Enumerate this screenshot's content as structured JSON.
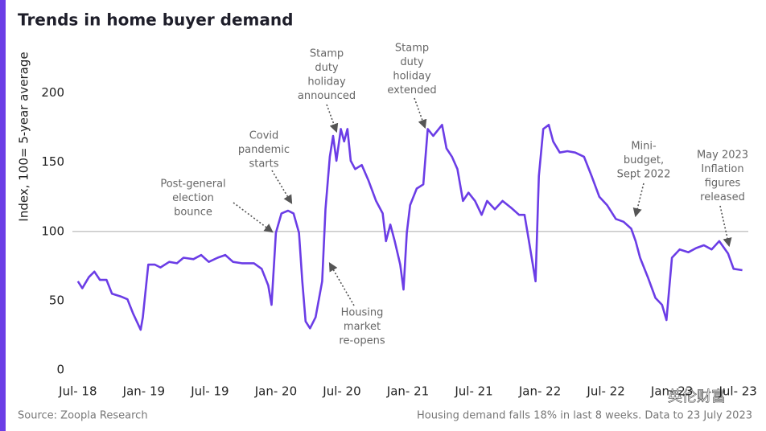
{
  "chart_data": {
    "type": "line",
    "title": "Trends in home buyer demand",
    "y_label": "Index, 100= 5-year average",
    "source": "Source: Zoopla Research",
    "note": "Housing demand falls 18% in last 8 weeks. Data to 23 July 2023",
    "watermark": "英伦财富",
    "x": [
      0,
      0.4,
      1.0,
      1.5,
      2.0,
      2.6,
      3.1,
      3.9,
      4.5,
      5.0,
      5.7,
      5.9,
      6.4,
      7.0,
      7.5,
      8.3,
      9.0,
      9.6,
      10.5,
      11.2,
      11.9,
      12.7,
      13.4,
      14.1,
      14.9,
      16.0,
      16.7,
      17.3,
      17.6,
      18.0,
      18.5,
      19.1,
      19.6,
      20.1,
      20.4,
      20.7,
      21.1,
      21.6,
      22.2,
      22.5,
      22.9,
      23.2,
      23.5,
      23.9,
      24.2,
      24.5,
      24.8,
      25.2,
      25.8,
      26.4,
      27.1,
      27.7,
      28.0,
      28.4,
      28.8,
      29.3,
      29.6,
      29.9,
      30.2,
      30.8,
      31.4,
      31.8,
      32.3,
      32.8,
      33.1,
      33.5,
      34.0,
      34.5,
      35.0,
      35.5,
      36.1,
      36.7,
      37.2,
      37.9,
      38.6,
      39.4,
      40.1,
      40.6,
      41.0,
      41.6,
      41.9,
      42.3,
      42.8,
      43.2,
      43.8,
      44.5,
      45.2,
      46.0,
      46.7,
      47.4,
      48.1,
      48.9,
      49.6,
      50.3,
      50.7,
      51.1,
      51.8,
      52.5,
      53.1,
      53.5,
      54.0,
      54.7,
      55.5,
      56.2,
      56.9,
      57.6,
      58.3,
      59.1,
      59.6,
      60.4
    ],
    "series": [
      {
        "name": "Index",
        "color": "#6b3de6",
        "values": [
          64,
          59,
          67,
          71,
          65,
          65,
          55,
          53,
          51,
          41,
          29,
          38,
          76,
          76,
          74,
          78,
          77,
          81,
          80,
          83,
          78,
          81,
          83,
          78,
          77,
          77,
          73,
          61,
          47,
          99,
          113,
          115,
          113,
          99,
          64,
          35,
          30,
          38,
          64,
          116,
          154,
          169,
          151,
          174,
          165,
          174,
          151,
          145,
          148,
          137,
          122,
          113,
          93,
          105,
          93,
          76,
          58,
          99,
          119,
          131,
          134,
          174,
          169,
          174,
          177,
          160,
          154,
          145,
          122,
          128,
          122,
          112,
          122,
          116,
          122,
          117,
          112,
          112,
          93,
          64,
          140,
          174,
          177,
          165,
          157,
          158,
          157,
          154,
          140,
          125,
          119,
          109,
          107,
          102,
          93,
          81,
          67,
          52,
          47,
          36,
          81,
          87,
          85,
          88,
          90,
          87,
          93,
          84,
          73,
          72
        ]
      }
    ],
    "xlim": [
      -0.5,
      60.5
    ],
    "xticks": [
      {
        "value": 0,
        "label": "Jul- 18"
      },
      {
        "value": 6,
        "label": "Jan- 19"
      },
      {
        "value": 12,
        "label": "Jul- 19"
      },
      {
        "value": 18,
        "label": "Jan- 20"
      },
      {
        "value": 24,
        "label": "Jul- 20"
      },
      {
        "value": 30,
        "label": "Jan- 21"
      },
      {
        "value": 36,
        "label": "Jul- 21"
      },
      {
        "value": 42,
        "label": "Jan- 22"
      },
      {
        "value": 48,
        "label": "Jul- 22"
      },
      {
        "value": 54,
        "label": "Jan- 23"
      },
      {
        "value": 60,
        "label": "Jul- 23"
      }
    ],
    "ylim": [
      0,
      230
    ],
    "yticks": [
      0,
      50,
      100,
      150,
      200
    ],
    "reference_line": 100,
    "annotations": [
      {
        "lines": [
          "Post-general",
          "election",
          "bounce"
        ]
      },
      {
        "lines": [
          "Covid",
          "pandemic",
          "starts"
        ]
      },
      {
        "lines": [
          "Stamp",
          "duty",
          "holiday",
          "announced"
        ]
      },
      {
        "lines": [
          "Housing",
          "market",
          "re-opens"
        ]
      },
      {
        "lines": [
          "Stamp",
          "duty",
          "holiday",
          "extended"
        ]
      },
      {
        "lines": [
          "Mini-",
          "budget,",
          "Sept 2022"
        ]
      },
      {
        "lines": [
          "May 2023",
          "Inflation",
          "figures",
          "released"
        ]
      }
    ]
  }
}
